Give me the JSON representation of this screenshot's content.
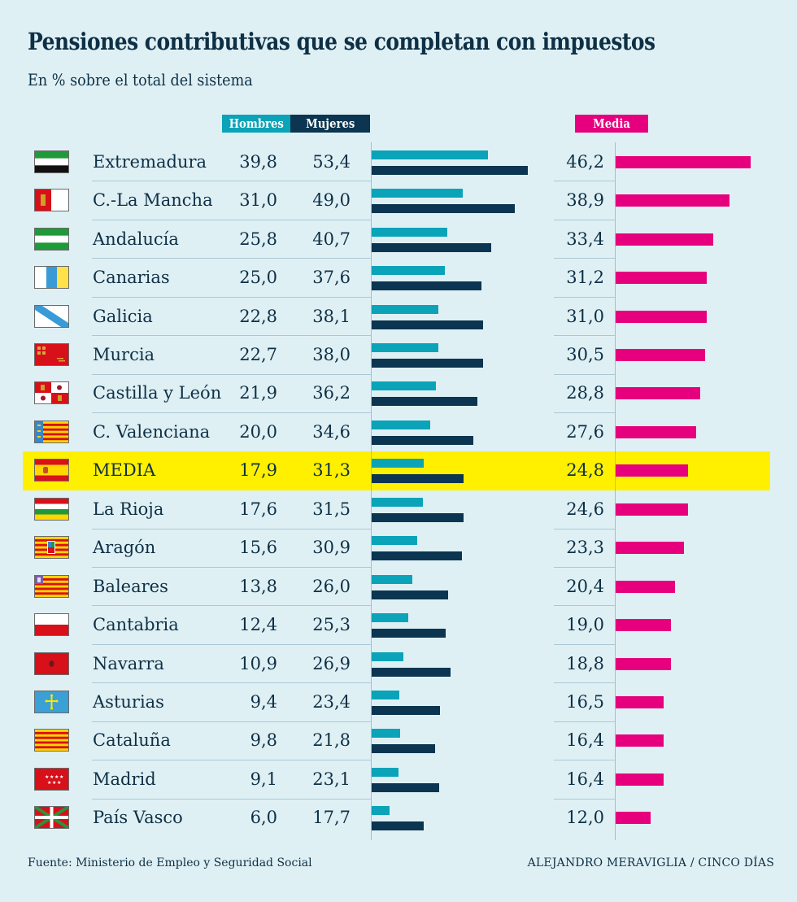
{
  "header": {
    "title": "Pensiones contributivas que se completan con impuestos",
    "subtitle": "En % sobre el total del sistema"
  },
  "legend": {
    "hombres": "Hombres",
    "mujeres": "Mujeres",
    "media": "Media"
  },
  "colors": {
    "hombres": "#0aa3b8",
    "mujeres": "#0b3550",
    "media": "#e6007e",
    "highlight": "#fff000",
    "background": "#dff0f5"
  },
  "footer": {
    "source": "Fuente: Ministerio de Empleo y Seguridad Social",
    "credit": "ALEJANDRO MERAVIGLIA / CINCO DÍAS"
  },
  "chart_data": {
    "type": "bar",
    "title": "Pensiones contributivas que se completan con impuestos",
    "subtitle": "En % sobre el total del sistema",
    "orientation": "horizontal",
    "xlabel": "",
    "ylabel": "",
    "xlim": [
      0,
      60
    ],
    "grid": false,
    "legend": [
      "Hombres",
      "Mujeres",
      "Media"
    ],
    "legend_position": "top",
    "highlighted_category": "MEDIA",
    "categories": [
      "Extremadura",
      "C.-La Mancha",
      "Andalucía",
      "Canarias",
      "Galicia",
      "Murcia",
      "Castilla y León",
      "C. Valenciana",
      "MEDIA",
      "La Rioja",
      "Aragón",
      "Baleares",
      "Cantabria",
      "Navarra",
      "Asturias",
      "Cataluña",
      "Madrid",
      "País Vasco"
    ],
    "display_labels": {
      "hombres": [
        "39,8",
        "31,0",
        "25,8",
        "25,0",
        "22,8",
        "22,7",
        "21,9",
        "20,0",
        "17,9",
        "17,6",
        "15,6",
        "13,8",
        "12,4",
        "10,9",
        "9,4",
        "9,8",
        "9,1",
        "6,0"
      ],
      "mujeres": [
        "53,4",
        "49,0",
        "40,7",
        "37,6",
        "38,1",
        "38,0",
        "36,2",
        "34,6",
        "31,3",
        "31,5",
        "30,9",
        "26,0",
        "25,3",
        "26,9",
        "23,4",
        "21,8",
        "23,1",
        "17,7"
      ],
      "media": [
        "46,2",
        "38,9",
        "33,4",
        "31,2",
        "31,0",
        "30,5",
        "28,8",
        "27,6",
        "24,8",
        "24,6",
        "23,3",
        "20,4",
        "19,0",
        "18,8",
        "16,5",
        "16,4",
        "16,4",
        "12,0"
      ]
    },
    "series": [
      {
        "name": "Hombres",
        "values": [
          39.8,
          31.0,
          25.8,
          25.0,
          22.8,
          22.7,
          21.9,
          20.0,
          17.9,
          17.6,
          15.6,
          13.8,
          12.4,
          10.9,
          9.4,
          9.8,
          9.1,
          6.0
        ]
      },
      {
        "name": "Mujeres",
        "values": [
          53.4,
          49.0,
          40.7,
          37.6,
          38.1,
          38.0,
          36.2,
          34.6,
          31.3,
          31.5,
          30.9,
          26.0,
          25.3,
          26.9,
          23.4,
          21.8,
          23.1,
          17.7
        ]
      },
      {
        "name": "Media",
        "values": [
          46.2,
          38.9,
          33.4,
          31.2,
          31.0,
          30.5,
          28.8,
          27.6,
          24.8,
          24.6,
          23.3,
          20.4,
          19.0,
          18.8,
          16.5,
          16.4,
          16.4,
          12.0
        ]
      }
    ],
    "flags": [
      "extremadura-flag-icon",
      "castilla-la-mancha-flag-icon",
      "andalucia-flag-icon",
      "canarias-flag-icon",
      "galicia-flag-icon",
      "murcia-flag-icon",
      "castilla-y-leon-flag-icon",
      "valencia-flag-icon",
      "spain-flag-icon",
      "la-rioja-flag-icon",
      "aragon-flag-icon",
      "baleares-flag-icon",
      "cantabria-flag-icon",
      "navarra-flag-icon",
      "asturias-flag-icon",
      "cataluna-flag-icon",
      "madrid-flag-icon",
      "pais-vasco-flag-icon"
    ]
  }
}
